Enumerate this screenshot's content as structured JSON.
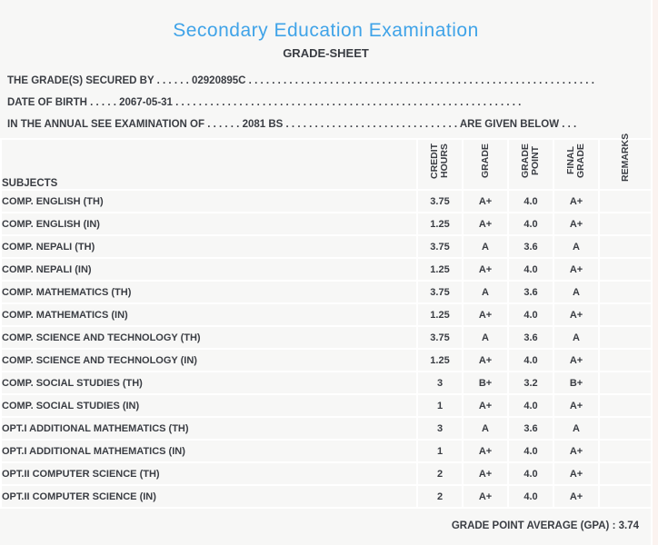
{
  "colors": {
    "page_background": "#f7f7f6",
    "grid_lines": "#ffffff",
    "text": "#3a3d43",
    "title_blue": "#3fa3e8",
    "right_edge_tint": "#fbf3f0"
  },
  "header": {
    "title": "Secondary Education Examination",
    "subtitle": "GRADE-SHEET"
  },
  "info": {
    "rows": [
      {
        "label": "THE GRADE(S) SECURED BY",
        "dots_before": " . . . . . . ",
        "value": "02920895C",
        "dots_after": " . . . . . . . . . . . . . . . . . . . . . . . . . . . . . . . . . . . . . . . . . . . . . . . . . . . . . . . . . . . .",
        "suffix": ""
      },
      {
        "label": "DATE OF BIRTH",
        "dots_before": " . . . . . ",
        "value": "2067-05-31",
        "dots_after": " . . . . . . . . . . . . . . . . . . . . . . . . . . . . . . . . . . . . . . . . . . . . . . . . . . . . . . . . . . . .",
        "suffix": ""
      },
      {
        "label": "IN THE ANNUAL SEE EXAMINATION OF",
        "dots_before": " . . . . . . ",
        "value": "2081 BS",
        "dots_after": " . . . . . . . . . . . . . . . . . . . . . . . . . . . . . . ",
        "suffix": "ARE GIVEN BELOW . . ."
      }
    ]
  },
  "table": {
    "headers": {
      "subjects": "SUBJECTS",
      "credit_hours": "CREDIT HOURS",
      "grade": "GRADE",
      "grade_point": "GRADE POINT",
      "final_grade": "FINAL GRADE",
      "remarks": "REMARKS"
    },
    "rows": [
      {
        "subject": "COMP. ENGLISH (TH)",
        "credit_hours": "3.75",
        "grade": "A+",
        "grade_point": "4.0",
        "final_grade": "A+",
        "remarks": ""
      },
      {
        "subject": "COMP. ENGLISH (IN)",
        "credit_hours": "1.25",
        "grade": "A+",
        "grade_point": "4.0",
        "final_grade": "A+",
        "remarks": ""
      },
      {
        "subject": "COMP. NEPALI (TH)",
        "credit_hours": "3.75",
        "grade": "A",
        "grade_point": "3.6",
        "final_grade": "A",
        "remarks": ""
      },
      {
        "subject": "COMP. NEPALI (IN)",
        "credit_hours": "1.25",
        "grade": "A+",
        "grade_point": "4.0",
        "final_grade": "A+",
        "remarks": ""
      },
      {
        "subject": "COMP. MATHEMATICS (TH)",
        "credit_hours": "3.75",
        "grade": "A",
        "grade_point": "3.6",
        "final_grade": "A",
        "remarks": ""
      },
      {
        "subject": "COMP. MATHEMATICS (IN)",
        "credit_hours": "1.25",
        "grade": "A+",
        "grade_point": "4.0",
        "final_grade": "A+",
        "remarks": ""
      },
      {
        "subject": "COMP. SCIENCE AND TECHNOLOGY (TH)",
        "credit_hours": "3.75",
        "grade": "A",
        "grade_point": "3.6",
        "final_grade": "A",
        "remarks": ""
      },
      {
        "subject": "COMP. SCIENCE AND TECHNOLOGY (IN)",
        "credit_hours": "1.25",
        "grade": "A+",
        "grade_point": "4.0",
        "final_grade": "A+",
        "remarks": ""
      },
      {
        "subject": "COMP. SOCIAL STUDIES (TH)",
        "credit_hours": "3",
        "grade": "B+",
        "grade_point": "3.2",
        "final_grade": "B+",
        "remarks": ""
      },
      {
        "subject": "COMP. SOCIAL STUDIES (IN)",
        "credit_hours": "1",
        "grade": "A+",
        "grade_point": "4.0",
        "final_grade": "A+",
        "remarks": ""
      },
      {
        "subject": "OPT.I ADDITIONAL MATHEMATICS (TH)",
        "credit_hours": "3",
        "grade": "A",
        "grade_point": "3.6",
        "final_grade": "A",
        "remarks": ""
      },
      {
        "subject": "OPT.I ADDITIONAL MATHEMATICS (IN)",
        "credit_hours": "1",
        "grade": "A+",
        "grade_point": "4.0",
        "final_grade": "A+",
        "remarks": ""
      },
      {
        "subject": "OPT.II COMPUTER SCIENCE (TH)",
        "credit_hours": "2",
        "grade": "A+",
        "grade_point": "4.0",
        "final_grade": "A+",
        "remarks": ""
      },
      {
        "subject": "OPT.II COMPUTER SCIENCE (IN)",
        "credit_hours": "2",
        "grade": "A+",
        "grade_point": "4.0",
        "final_grade": "A+",
        "remarks": ""
      }
    ]
  },
  "footer": {
    "gpa_text": "GRADE POINT AVERAGE (GPA) : 3.74"
  }
}
